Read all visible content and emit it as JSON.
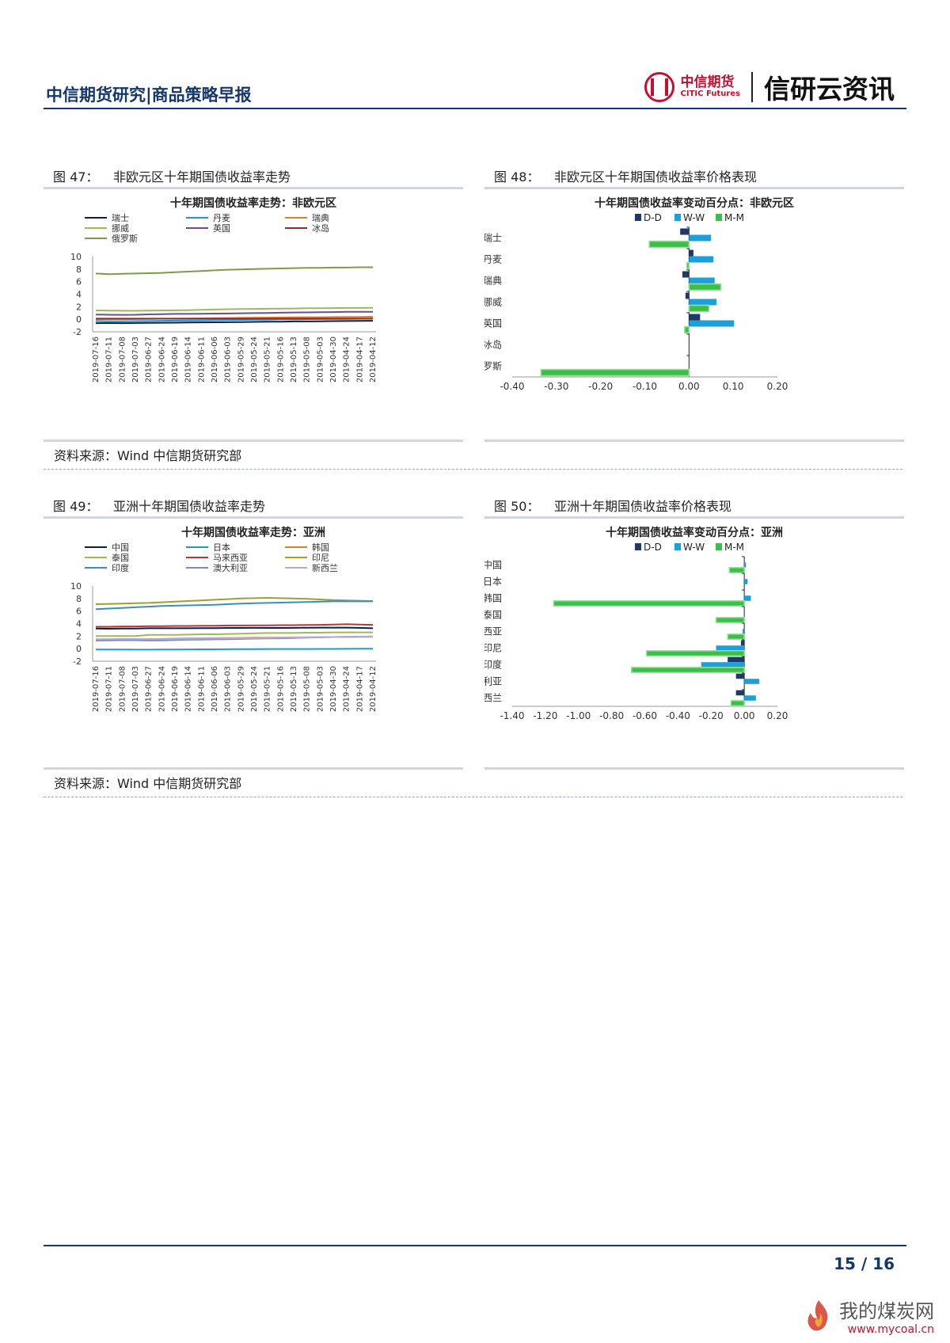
{
  "header": {
    "report_title": "中信期货研究|商品策略早报",
    "brand_cn": "中信期货",
    "brand_en": "CITIC Futures",
    "brand_title": "信研云资讯"
  },
  "figures": [
    {
      "num": "图 47：",
      "title": "非欧元区十年期国债收益率走势"
    },
    {
      "num": "图 48：",
      "title": "非欧元区十年期国债收益率价格表现"
    },
    {
      "num": "图 49：",
      "title": "亚洲十年期国债收益率走势"
    },
    {
      "num": "图 50：",
      "title": "亚洲十年期国债收益率价格表现"
    }
  ],
  "source_text": "资料来源：Wind  中信期货研究部",
  "footer": {
    "page": "15 / 16"
  },
  "watermark": {
    "cn": "我的煤炭网",
    "url": "www.mycoal.cn"
  },
  "chart_data": [
    {
      "type": "line",
      "title": "十年期国债收益率走势：非欧元区",
      "ylim": [
        -2,
        10
      ],
      "yticks": [
        "-2",
        "0",
        "2",
        "4",
        "6",
        "8",
        "10"
      ],
      "x": [
        "2019-07-16",
        "2019-07-11",
        "2019-07-08",
        "2019-07-03",
        "2019-06-27",
        "2019-06-24",
        "2019-06-19",
        "2019-06-14",
        "2019-06-11",
        "2019-06-06",
        "2019-06-03",
        "2019-05-29",
        "2019-05-24",
        "2019-05-21",
        "2019-05-16",
        "2019-05-13",
        "2019-05-08",
        "2019-05-03",
        "2019-04-30",
        "2019-04-24",
        "2019-04-17",
        "2019-04-12"
      ],
      "series": [
        {
          "name": "瑞士",
          "color": "#0b1f4a",
          "values": [
            -0.62,
            -0.6,
            -0.62,
            -0.6,
            -0.58,
            -0.56,
            -0.55,
            -0.52,
            -0.5,
            -0.48,
            -0.47,
            -0.45,
            -0.42,
            -0.4,
            -0.38,
            -0.35,
            -0.34,
            -0.32,
            -0.3,
            -0.28,
            -0.26,
            -0.25
          ]
        },
        {
          "name": "丹麦",
          "color": "#1b9ad6",
          "values": [
            -0.3,
            -0.32,
            -0.35,
            -0.3,
            -0.28,
            -0.25,
            -0.22,
            -0.2,
            -0.18,
            -0.15,
            -0.12,
            -0.1,
            -0.08,
            -0.05,
            -0.02,
            0.0,
            0.02,
            0.03,
            0.05,
            0.06,
            0.08,
            0.1
          ]
        },
        {
          "name": "瑞典",
          "color": "#e07b2a",
          "values": [
            0.0,
            0.02,
            0.0,
            0.03,
            0.05,
            0.08,
            0.1,
            0.12,
            0.15,
            0.18,
            0.2,
            0.22,
            0.25,
            0.26,
            0.28,
            0.3,
            0.32,
            0.33,
            0.35,
            0.36,
            0.38,
            0.4
          ]
        },
        {
          "name": "挪威",
          "color": "#9bbb59",
          "values": [
            1.4,
            1.38,
            1.36,
            1.35,
            1.38,
            1.4,
            1.42,
            1.45,
            1.5,
            1.55,
            1.6,
            1.62,
            1.65,
            1.68,
            1.7,
            1.72,
            1.75,
            1.76,
            1.78,
            1.8,
            1.8,
            1.82
          ]
        },
        {
          "name": "英国",
          "color": "#6b4c9a",
          "values": [
            0.75,
            0.72,
            0.7,
            0.72,
            0.78,
            0.82,
            0.85,
            0.86,
            0.88,
            0.9,
            0.92,
            0.95,
            0.98,
            1.0,
            1.05,
            1.08,
            1.1,
            1.12,
            1.15,
            1.18,
            1.2,
            1.2
          ]
        },
        {
          "name": "冰岛",
          "color": "#8b2e2e",
          "values": [
            0.1,
            0.1,
            0.1,
            0.1,
            0.1,
            0.1,
            0.1,
            0.1,
            0.1,
            0.1,
            0.1,
            0.1,
            0.1,
            0.1,
            0.1,
            0.1,
            0.1,
            0.1,
            0.1,
            0.1,
            0.1,
            0.1
          ]
        },
        {
          "name": "俄罗斯",
          "color": "#7e9b4a",
          "values": [
            7.3,
            7.2,
            7.25,
            7.3,
            7.35,
            7.4,
            7.5,
            7.6,
            7.7,
            7.8,
            7.9,
            7.95,
            8.0,
            8.05,
            8.1,
            8.15,
            8.2,
            8.2,
            8.25,
            8.25,
            8.3,
            8.3
          ]
        }
      ]
    },
    {
      "type": "bar",
      "orientation": "horizontal",
      "title": "十年期国债收益率变动百分点：非欧元区",
      "categories": [
        "瑞士",
        "丹麦",
        "瑞典",
        "挪威",
        "英国",
        "冰岛",
        "俄罗斯"
      ],
      "xlim": [
        -0.4,
        0.2
      ],
      "xticks": [
        "-0.40",
        "-0.30",
        "-0.20",
        "-0.10",
        "0.00",
        "0.10",
        "0.20"
      ],
      "series": [
        {
          "name": "D-D",
          "color": "#1f3a66",
          "values": [
            -0.02,
            0.01,
            -0.015,
            -0.008,
            0.025,
            0.0,
            0.0
          ]
        },
        {
          "name": "W-W",
          "color": "#1ba0dc",
          "values": [
            0.05,
            0.055,
            0.058,
            0.062,
            0.102,
            0.0,
            0.0
          ]
        },
        {
          "name": "M-M",
          "color": "#3bbf4a",
          "values": [
            -0.09,
            -0.005,
            0.072,
            0.045,
            -0.01,
            0.0,
            -0.335
          ]
        }
      ]
    },
    {
      "type": "line",
      "title": "十年期国债收益率走势：亚洲",
      "ylim": [
        -2,
        10
      ],
      "yticks": [
        "-2",
        "0",
        "2",
        "4",
        "6",
        "8",
        "10"
      ],
      "x": [
        "2019-07-16",
        "2019-07-11",
        "2019-07-08",
        "2019-07-03",
        "2019-06-27",
        "2019-06-24",
        "2019-06-19",
        "2019-06-14",
        "2019-06-11",
        "2019-06-06",
        "2019-06-03",
        "2019-05-29",
        "2019-05-24",
        "2019-05-21",
        "2019-05-16",
        "2019-05-13",
        "2019-05-08",
        "2019-05-03",
        "2019-04-30",
        "2019-04-24",
        "2019-04-17",
        "2019-04-12"
      ],
      "series": [
        {
          "name": "中国",
          "color": "#0b1f4a",
          "values": [
            3.2,
            3.18,
            3.2,
            3.22,
            3.25,
            3.25,
            3.25,
            3.26,
            3.27,
            3.28,
            3.3,
            3.3,
            3.32,
            3.3,
            3.3,
            3.32,
            3.34,
            3.35,
            3.36,
            3.35,
            3.32,
            3.25
          ]
        },
        {
          "name": "日本",
          "color": "#1b9ad6",
          "values": [
            -0.13,
            -0.13,
            -0.14,
            -0.15,
            -0.15,
            -0.14,
            -0.13,
            -0.12,
            -0.11,
            -0.1,
            -0.09,
            -0.08,
            -0.07,
            -0.06,
            -0.06,
            -0.05,
            -0.05,
            -0.04,
            -0.04,
            -0.03,
            -0.02,
            -0.02
          ]
        },
        {
          "name": "韩国",
          "color": "#e07b2a",
          "values": [
            1.5,
            1.48,
            1.5,
            1.5,
            1.52,
            1.55,
            1.6,
            1.62,
            1.65,
            1.68,
            1.7,
            1.72,
            1.75,
            1.76,
            1.78,
            1.8,
            1.82,
            1.84,
            1.85,
            1.86,
            1.88,
            1.9
          ]
        },
        {
          "name": "泰国",
          "color": "#9bbb59",
          "values": [
            2.0,
            2.0,
            2.0,
            2.0,
            2.2,
            2.2,
            2.2,
            2.25,
            2.3,
            2.3,
            2.35,
            2.4,
            2.45,
            2.5,
            2.5,
            2.5,
            2.55,
            2.55,
            2.6,
            2.6,
            2.6,
            2.6
          ]
        },
        {
          "name": "马来西亚",
          "color": "#b03a3a",
          "values": [
            3.5,
            3.5,
            3.55,
            3.55,
            3.6,
            3.6,
            3.62,
            3.62,
            3.65,
            3.65,
            3.7,
            3.7,
            3.72,
            3.72,
            3.75,
            3.75,
            3.78,
            3.8,
            3.85,
            3.9,
            3.85,
            3.8
          ]
        },
        {
          "name": "印尼",
          "color": "#a0a030",
          "values": [
            7.1,
            7.15,
            7.2,
            7.25,
            7.3,
            7.4,
            7.5,
            7.6,
            7.7,
            7.8,
            7.9,
            8.0,
            8.05,
            8.1,
            8.05,
            8.0,
            7.95,
            7.85,
            7.75,
            7.7,
            7.65,
            7.6
          ]
        },
        {
          "name": "印度",
          "color": "#3c8fbc",
          "values": [
            6.3,
            6.4,
            6.5,
            6.6,
            6.7,
            6.8,
            6.85,
            6.9,
            6.95,
            7.0,
            7.1,
            7.2,
            7.25,
            7.3,
            7.35,
            7.4,
            7.45,
            7.5,
            7.55,
            7.55,
            7.55,
            7.55
          ]
        },
        {
          "name": "澳大利亚",
          "color": "#7a8bbf",
          "values": [
            1.3,
            1.32,
            1.35,
            1.35,
            1.3,
            1.32,
            1.38,
            1.42,
            1.45,
            1.48,
            1.5,
            1.55,
            1.6,
            1.62,
            1.65,
            1.7,
            1.75,
            1.8,
            1.85,
            1.9,
            1.92,
            1.95
          ]
        },
        {
          "name": "新西兰",
          "color": "#b7a9cf",
          "values": [
            1.5,
            1.52,
            1.55,
            1.55,
            1.5,
            1.52,
            1.55,
            1.58,
            1.6,
            1.62,
            1.65,
            1.68,
            1.7,
            1.72,
            1.75,
            1.78,
            1.8,
            1.82,
            1.85,
            1.88,
            1.9,
            1.9
          ]
        }
      ]
    },
    {
      "type": "bar",
      "orientation": "horizontal",
      "title": "十年期国债收益率变动百分点：亚洲",
      "categories": [
        "中国",
        "日本",
        "韩国",
        "泰国",
        "马来西亚",
        "印尼",
        "印度",
        "澳大利亚",
        "新西兰"
      ],
      "xlim": [
        -1.4,
        0.2
      ],
      "xticks": [
        "-1.40",
        "-1.20",
        "-1.00",
        "-0.80",
        "-0.60",
        "-0.40",
        "-0.20",
        "0.00",
        "0.20"
      ],
      "series": [
        {
          "name": "D-D",
          "color": "#1f3a66",
          "values": [
            0.0,
            0.0,
            0.0,
            0.0,
            0.0,
            -0.02,
            -0.1,
            -0.05,
            -0.05
          ]
        },
        {
          "name": "W-W",
          "color": "#1ba0dc",
          "values": [
            0.01,
            0.02,
            0.04,
            0.0,
            -0.01,
            -0.17,
            -0.26,
            0.09,
            0.07
          ]
        },
        {
          "name": "M-M",
          "color": "#3bbf4a",
          "values": [
            -0.09,
            0.0,
            -1.15,
            -0.17,
            -0.1,
            -0.59,
            -0.68,
            0.0,
            -0.08
          ]
        }
      ]
    }
  ]
}
